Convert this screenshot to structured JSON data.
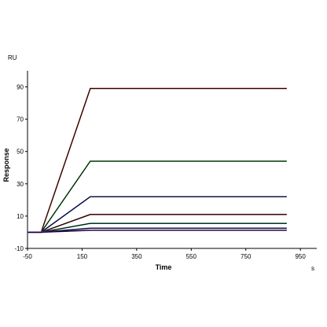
{
  "chart_data": {
    "type": "line",
    "title": "",
    "xlabel": "Time",
    "ylabel": "Response",
    "y_unit": "RU",
    "x_unit": "s",
    "xlim": [
      -50,
      1010
    ],
    "ylim": [
      -10,
      100
    ],
    "x_ticks": [
      -50,
      150,
      350,
      550,
      750,
      950
    ],
    "y_ticks": [
      -10,
      10,
      30,
      50,
      70,
      90
    ],
    "grid": false,
    "legend": "none",
    "segments": {
      "baseline_start": -50,
      "injection_start": 0,
      "injection_end": 180,
      "end": 900
    },
    "series": [
      {
        "plateau": 89,
        "fit_color": "#000000",
        "color": "#b03020"
      },
      {
        "plateau": 44,
        "fit_color": "#000000",
        "color": "#2a9a3a"
      },
      {
        "plateau": 22,
        "fit_color": "#000000",
        "color": "#3040c0"
      },
      {
        "plateau": 11,
        "fit_color": "#000000",
        "color": "#8a2a2a"
      },
      {
        "plateau": 5.5,
        "fit_color": "#000000",
        "color": "#1a8a5a"
      },
      {
        "plateau": 2.5,
        "fit_color": "#000000",
        "color": "#3030c0"
      },
      {
        "plateau": 1.2,
        "fit_color": "#000000",
        "color": "#7a20b0"
      }
    ]
  }
}
